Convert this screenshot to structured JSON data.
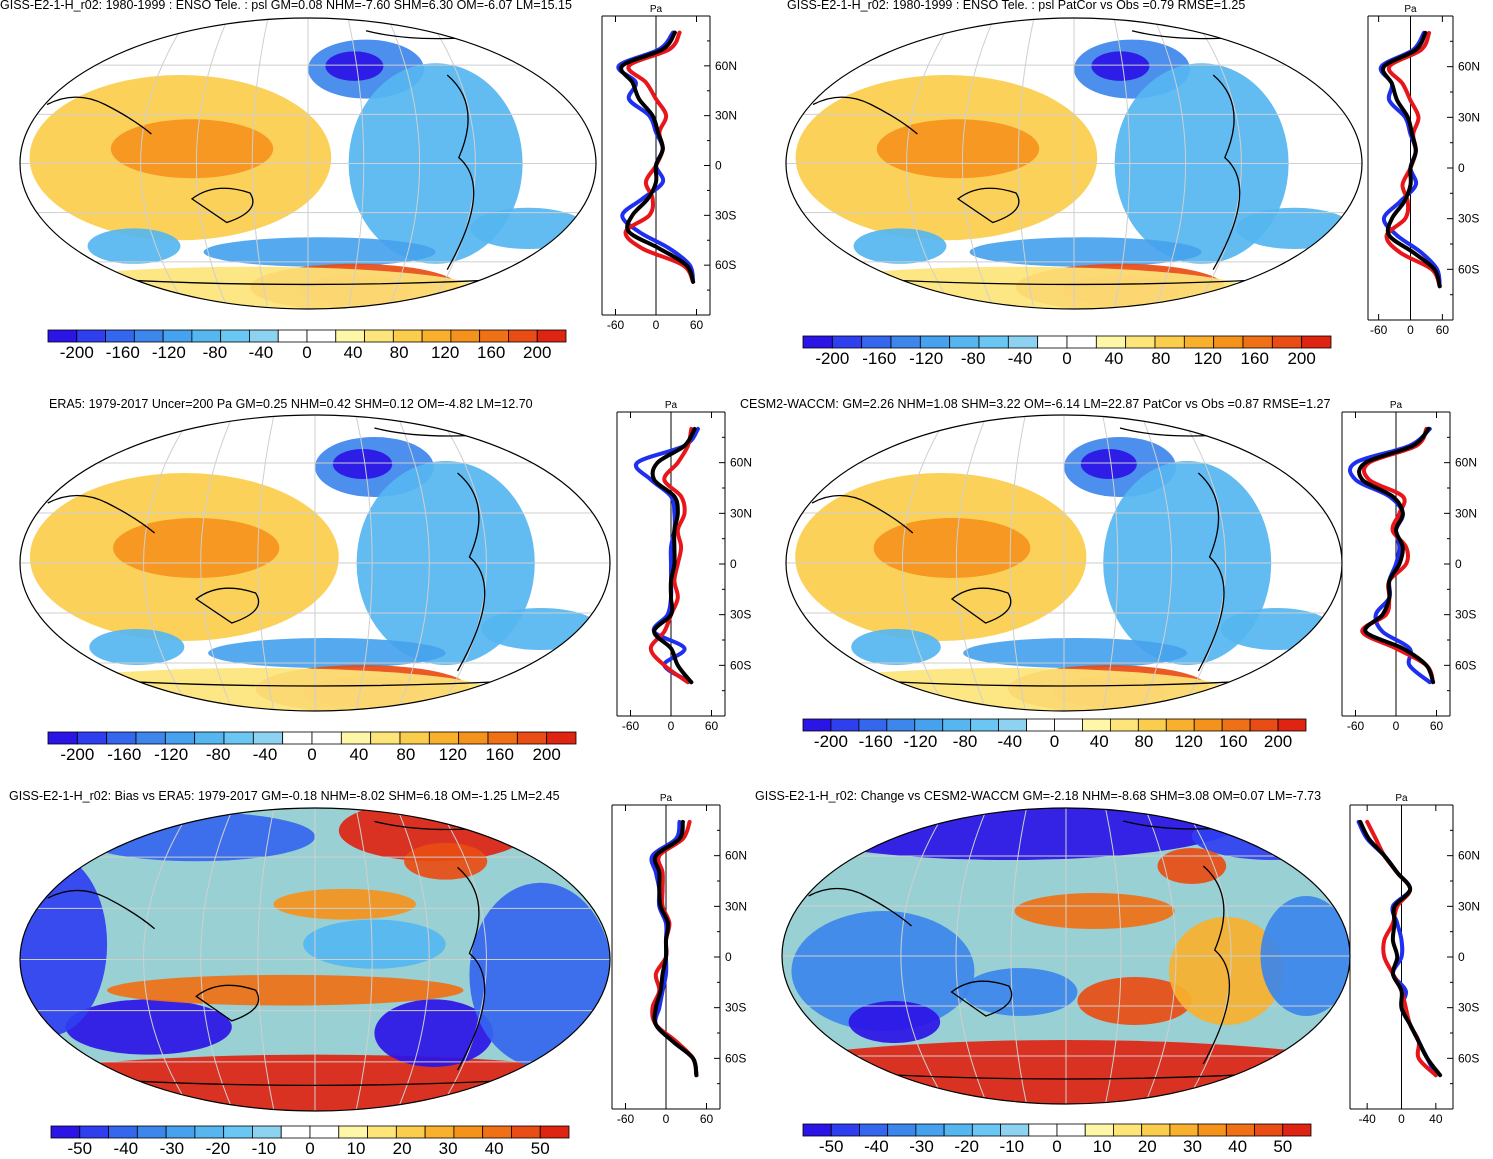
{
  "colorbar_palette": [
    "#2b14e6",
    "#2f3ff0",
    "#3566ee",
    "#3d86ec",
    "#46a2ee",
    "#55b6f0",
    "#6ac6f2",
    "#8ed2f2",
    "#ffffff",
    "#ffffff",
    "#fff7a8",
    "#fde57a",
    "#fbcd4c",
    "#f9b02c",
    "#f5921c",
    "#f07016",
    "#e94c14",
    "#df2412"
  ],
  "series_colors": {
    "model": "#1f2ff0",
    "obs": "#e8161a",
    "mean": "#000000"
  },
  "panels": [
    {
      "id": "p1",
      "title": "GISS-E2-1-H_r02: 1980-1999 : ENSO Tele. : psl GM=0.08 NHM=-7.60 SHM=6.30 OM=-6.07 LM=15.15",
      "colorbar_labels": [
        "-200",
        "-160",
        "-120",
        "-80",
        "-40",
        "0",
        "40",
        "80",
        "120",
        "160",
        "200"
      ],
      "zonal_unit": "Pa",
      "zonal_xticks": [
        "-60",
        "0",
        "60"
      ],
      "lat_labels": [
        "60N",
        "30N",
        "0",
        "30S",
        "60S"
      ],
      "chart_data": {
        "type": "heatmap",
        "title": "GISS-E2-1-H_r02: 1980-1999 : ENSO Tele. : psl GM=0.08 NHM=-7.60 SHM=6.30 OM=-6.07 LM=15.15",
        "colorbar_range": [
          -200,
          200
        ],
        "xlim": [
          -80,
          80
        ],
        "lat": [
          80,
          70,
          60,
          50,
          40,
          30,
          20,
          10,
          0,
          -10,
          -20,
          -30,
          -40,
          -50,
          -60,
          -70
        ],
        "series": [
          {
            "name": "Model (blue)",
            "values": [
              25,
              5,
              -55,
              -30,
              -40,
              -10,
              0,
              10,
              0,
              10,
              -20,
              -50,
              -25,
              20,
              50,
              55
            ]
          },
          {
            "name": "Obs (red)",
            "values": [
              35,
              20,
              -40,
              -15,
              0,
              15,
              5,
              10,
              0,
              -15,
              -5,
              -10,
              -45,
              -20,
              40,
              55
            ]
          },
          {
            "name": "Mean (black)",
            "values": [
              28,
              10,
              -50,
              -35,
              -25,
              -5,
              3,
              10,
              0,
              0,
              -12,
              -35,
              -40,
              5,
              45,
              55
            ]
          }
        ]
      }
    },
    {
      "id": "p2",
      "title": "GISS-E2-1-H_r02: 1980-1999 : ENSO Tele. : psl PatCor vs Obs =0.79 RMSE=1.25",
      "colorbar_labels": [
        "-200",
        "-160",
        "-120",
        "-80",
        "-40",
        "0",
        "40",
        "80",
        "120",
        "160",
        "200"
      ],
      "zonal_unit": "Pa",
      "zonal_xticks": [
        "-60",
        "0",
        "60"
      ],
      "lat_labels": [
        "60N",
        "30N",
        "0",
        "30S",
        "60S"
      ],
      "chart_data": {
        "type": "heatmap",
        "title": "GISS-E2-1-H_r02: 1980-1999 : ENSO Tele. : psl PatCor vs Obs =0.79 RMSE=1.25",
        "colorbar_range": [
          -200,
          200
        ],
        "xlim": [
          -80,
          80
        ],
        "lat": [
          80,
          70,
          60,
          50,
          40,
          30,
          20,
          10,
          0,
          -10,
          -20,
          -30,
          -40,
          -50,
          -60,
          -70
        ],
        "series": [
          {
            "name": "Model (blue)",
            "values": [
              25,
              5,
              -55,
              -35,
              -40,
              -10,
              0,
              10,
              0,
              10,
              -20,
              -50,
              -25,
              20,
              50,
              55
            ]
          },
          {
            "name": "Obs (red)",
            "values": [
              35,
              20,
              -40,
              -15,
              0,
              15,
              5,
              10,
              0,
              -15,
              -5,
              -10,
              -45,
              -20,
              40,
              55
            ]
          },
          {
            "name": "Mean (black)",
            "values": [
              28,
              10,
              -50,
              -35,
              -25,
              -5,
              3,
              10,
              0,
              0,
              -12,
              -35,
              -40,
              5,
              45,
              55
            ]
          }
        ]
      }
    },
    {
      "id": "p3",
      "title": "ERA5: 1979-2017 Uncer=200 Pa GM=0.25 NHM=0.42 SHM=0.12 OM=-4.82 LM=12.70",
      "colorbar_labels": [
        "-200",
        "-160",
        "-120",
        "-80",
        "-40",
        "0",
        "40",
        "80",
        "120",
        "160",
        "200"
      ],
      "zonal_unit": "Pa",
      "zonal_xticks": [
        "-60",
        "0",
        "60"
      ],
      "lat_labels": [
        "60N",
        "30N",
        "0",
        "30S",
        "60S"
      ],
      "chart_data": {
        "type": "heatmap",
        "title": "ERA5: 1979-2017 Uncer=200 Pa GM=0.25 NHM=0.42 SHM=0.12 OM=-4.82 LM=12.70",
        "colorbar_range": [
          -200,
          200
        ],
        "xlim": [
          -80,
          80
        ],
        "lat": [
          80,
          70,
          60,
          50,
          40,
          30,
          20,
          10,
          0,
          -10,
          -20,
          -30,
          -40,
          -50,
          -60,
          -70
        ],
        "series": [
          {
            "name": "Model (blue)",
            "values": [
              40,
              20,
              -50,
              -30,
              0,
              5,
              5,
              0,
              0,
              0,
              0,
              -5,
              -25,
              20,
              -10,
              30
            ]
          },
          {
            "name": "Obs (red)",
            "values": [
              30,
              25,
              10,
              -10,
              15,
              20,
              10,
              15,
              10,
              5,
              10,
              0,
              -10,
              -30,
              -10,
              25
            ]
          },
          {
            "name": "Mean (black)",
            "values": [
              35,
              20,
              -20,
              -25,
              5,
              10,
              5,
              5,
              5,
              0,
              0,
              0,
              -25,
              0,
              10,
              30
            ]
          }
        ]
      }
    },
    {
      "id": "p4",
      "title": "CESM2-WACCM: GM=2.26 NHM=1.08 SHM=3.22 OM=-6.14 LM=22.87 PatCor vs Obs =0.87 RMSE=1.27",
      "colorbar_labels": [
        "-200",
        "-160",
        "-120",
        "-80",
        "-40",
        "0",
        "40",
        "80",
        "120",
        "160",
        "200"
      ],
      "zonal_unit": "Pa",
      "zonal_xticks": [
        "-60",
        "0",
        "60"
      ],
      "lat_labels": [
        "60N",
        "30N",
        "0",
        "30S",
        "60S"
      ],
      "chart_data": {
        "type": "heatmap",
        "title": "CESM2-WACCM: GM=2.26 NHM=1.08 SHM=3.22 OM=-6.14 LM=22.87 PatCor vs Obs =0.87 RMSE=1.27",
        "colorbar_range": [
          -200,
          200
        ],
        "xlim": [
          -80,
          80
        ],
        "lat": [
          80,
          70,
          60,
          50,
          40,
          30,
          20,
          10,
          0,
          -10,
          -20,
          -30,
          -40,
          -50,
          -60,
          -70
        ],
        "series": [
          {
            "name": "Model (blue)",
            "values": [
              50,
              20,
              -60,
              -60,
              -10,
              10,
              0,
              5,
              0,
              -10,
              -10,
              -30,
              -20,
              20,
              20,
              50
            ]
          },
          {
            "name": "Obs (red)",
            "values": [
              45,
              30,
              -40,
              -40,
              10,
              5,
              -5,
              15,
              15,
              -10,
              -10,
              -15,
              -50,
              0,
              45,
              55
            ]
          },
          {
            "name": "Mean (black)",
            "values": [
              48,
              25,
              -45,
              -50,
              -5,
              10,
              0,
              10,
              5,
              -10,
              -10,
              -20,
              -45,
              10,
              45,
              55
            ]
          }
        ]
      }
    },
    {
      "id": "p5",
      "title": "GISS-E2-1-H_r02: Bias vs ERA5: 1979-2017 GM=-0.18 NHM=-8.02 SHM=6.18 OM=-1.25 LM=2.45",
      "colorbar_labels": [
        "-50",
        "-40",
        "-30",
        "-20",
        "-10",
        "0",
        "10",
        "20",
        "30",
        "40",
        "50"
      ],
      "zonal_unit": "Pa",
      "zonal_xticks": [
        "-60",
        "0",
        "60"
      ],
      "lat_labels": [
        "60N",
        "30N",
        "0",
        "30S",
        "60S"
      ],
      "chart_data": {
        "type": "heatmap",
        "title": "GISS-E2-1-H_r02: Bias vs ERA5: 1979-2017 GM=-0.18 NHM=-8.02 SHM=6.18 OM=-1.25 LM=2.45",
        "colorbar_range": [
          -50,
          50
        ],
        "xlim": [
          -80,
          80
        ],
        "lat": [
          80,
          70,
          60,
          50,
          40,
          30,
          20,
          10,
          0,
          -10,
          -20,
          -30,
          -40,
          -50,
          -60,
          -70
        ],
        "series": [
          {
            "name": "Model (blue)",
            "values": [
              20,
              15,
              -20,
              -15,
              -10,
              -10,
              0,
              0,
              0,
              0,
              -5,
              -10,
              -15,
              10,
              40,
              45
            ]
          },
          {
            "name": "Obs (red)",
            "values": [
              35,
              25,
              -10,
              -5,
              -5,
              -5,
              5,
              0,
              0,
              -15,
              -10,
              -20,
              -15,
              15,
              40,
              45
            ]
          },
          {
            "name": "Mean (black)",
            "values": [
              25,
              20,
              -15,
              -10,
              -10,
              -8,
              3,
              0,
              0,
              -5,
              -8,
              -15,
              -15,
              10,
              40,
              45
            ]
          }
        ]
      }
    },
    {
      "id": "p6",
      "title": "GISS-E2-1-H_r02: Change vs CESM2-WACCM GM=-2.18 NHM=-8.68 SHM=3.08 OM=0.07 LM=-7.73",
      "colorbar_labels": [
        "-50",
        "-40",
        "-30",
        "-20",
        "-10",
        "0",
        "10",
        "20",
        "30",
        "40",
        "50"
      ],
      "zonal_unit": "Pa",
      "zonal_xticks": [
        "-40",
        "0",
        "40"
      ],
      "lat_labels": [
        "60N",
        "30N",
        "0",
        "30S",
        "60S"
      ],
      "chart_data": {
        "type": "heatmap",
        "title": "GISS-E2-1-H_r02: Change vs CESM2-WACCM GM=-2.18 NHM=-8.68 SHM=3.08 OM=0.07 LM=-7.73",
        "colorbar_range": [
          -50,
          50
        ],
        "xlim": [
          -60,
          60
        ],
        "lat": [
          80,
          70,
          60,
          50,
          40,
          30,
          20,
          10,
          0,
          -10,
          -20,
          -30,
          -40,
          -50,
          -60,
          -70
        ],
        "series": [
          {
            "name": "Model (blue)",
            "values": [
              -50,
              -40,
              -20,
              -5,
              10,
              -10,
              -5,
              0,
              0,
              -10,
              5,
              0,
              10,
              20,
              30,
              40
            ]
          },
          {
            "name": "Obs (red)",
            "values": [
              -40,
              -30,
              -20,
              -5,
              10,
              -5,
              -10,
              -20,
              -20,
              -10,
              0,
              5,
              10,
              20,
              20,
              40
            ]
          },
          {
            "name": "Mean (black)",
            "values": [
              -48,
              -38,
              -20,
              -5,
              10,
              -8,
              -8,
              -10,
              -5,
              -10,
              0,
              0,
              10,
              20,
              30,
              45
            ]
          }
        ]
      }
    }
  ]
}
